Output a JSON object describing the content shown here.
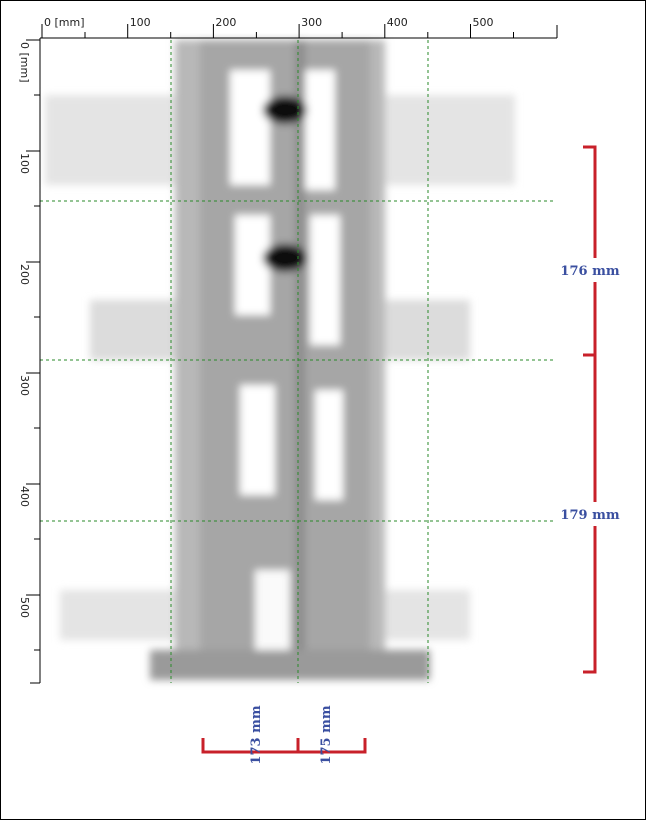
{
  "x_axis": {
    "labels": [
      "0 [mm]",
      "100",
      "200",
      "300",
      "400",
      "500"
    ]
  },
  "y_axis": {
    "labels": [
      "0 [mm]",
      "100",
      "200",
      "300",
      "400",
      "500"
    ]
  },
  "dimensions": {
    "vertical": [
      "176 mm",
      "179 mm"
    ],
    "horizontal": [
      "173 mm",
      "175 mm"
    ]
  }
}
